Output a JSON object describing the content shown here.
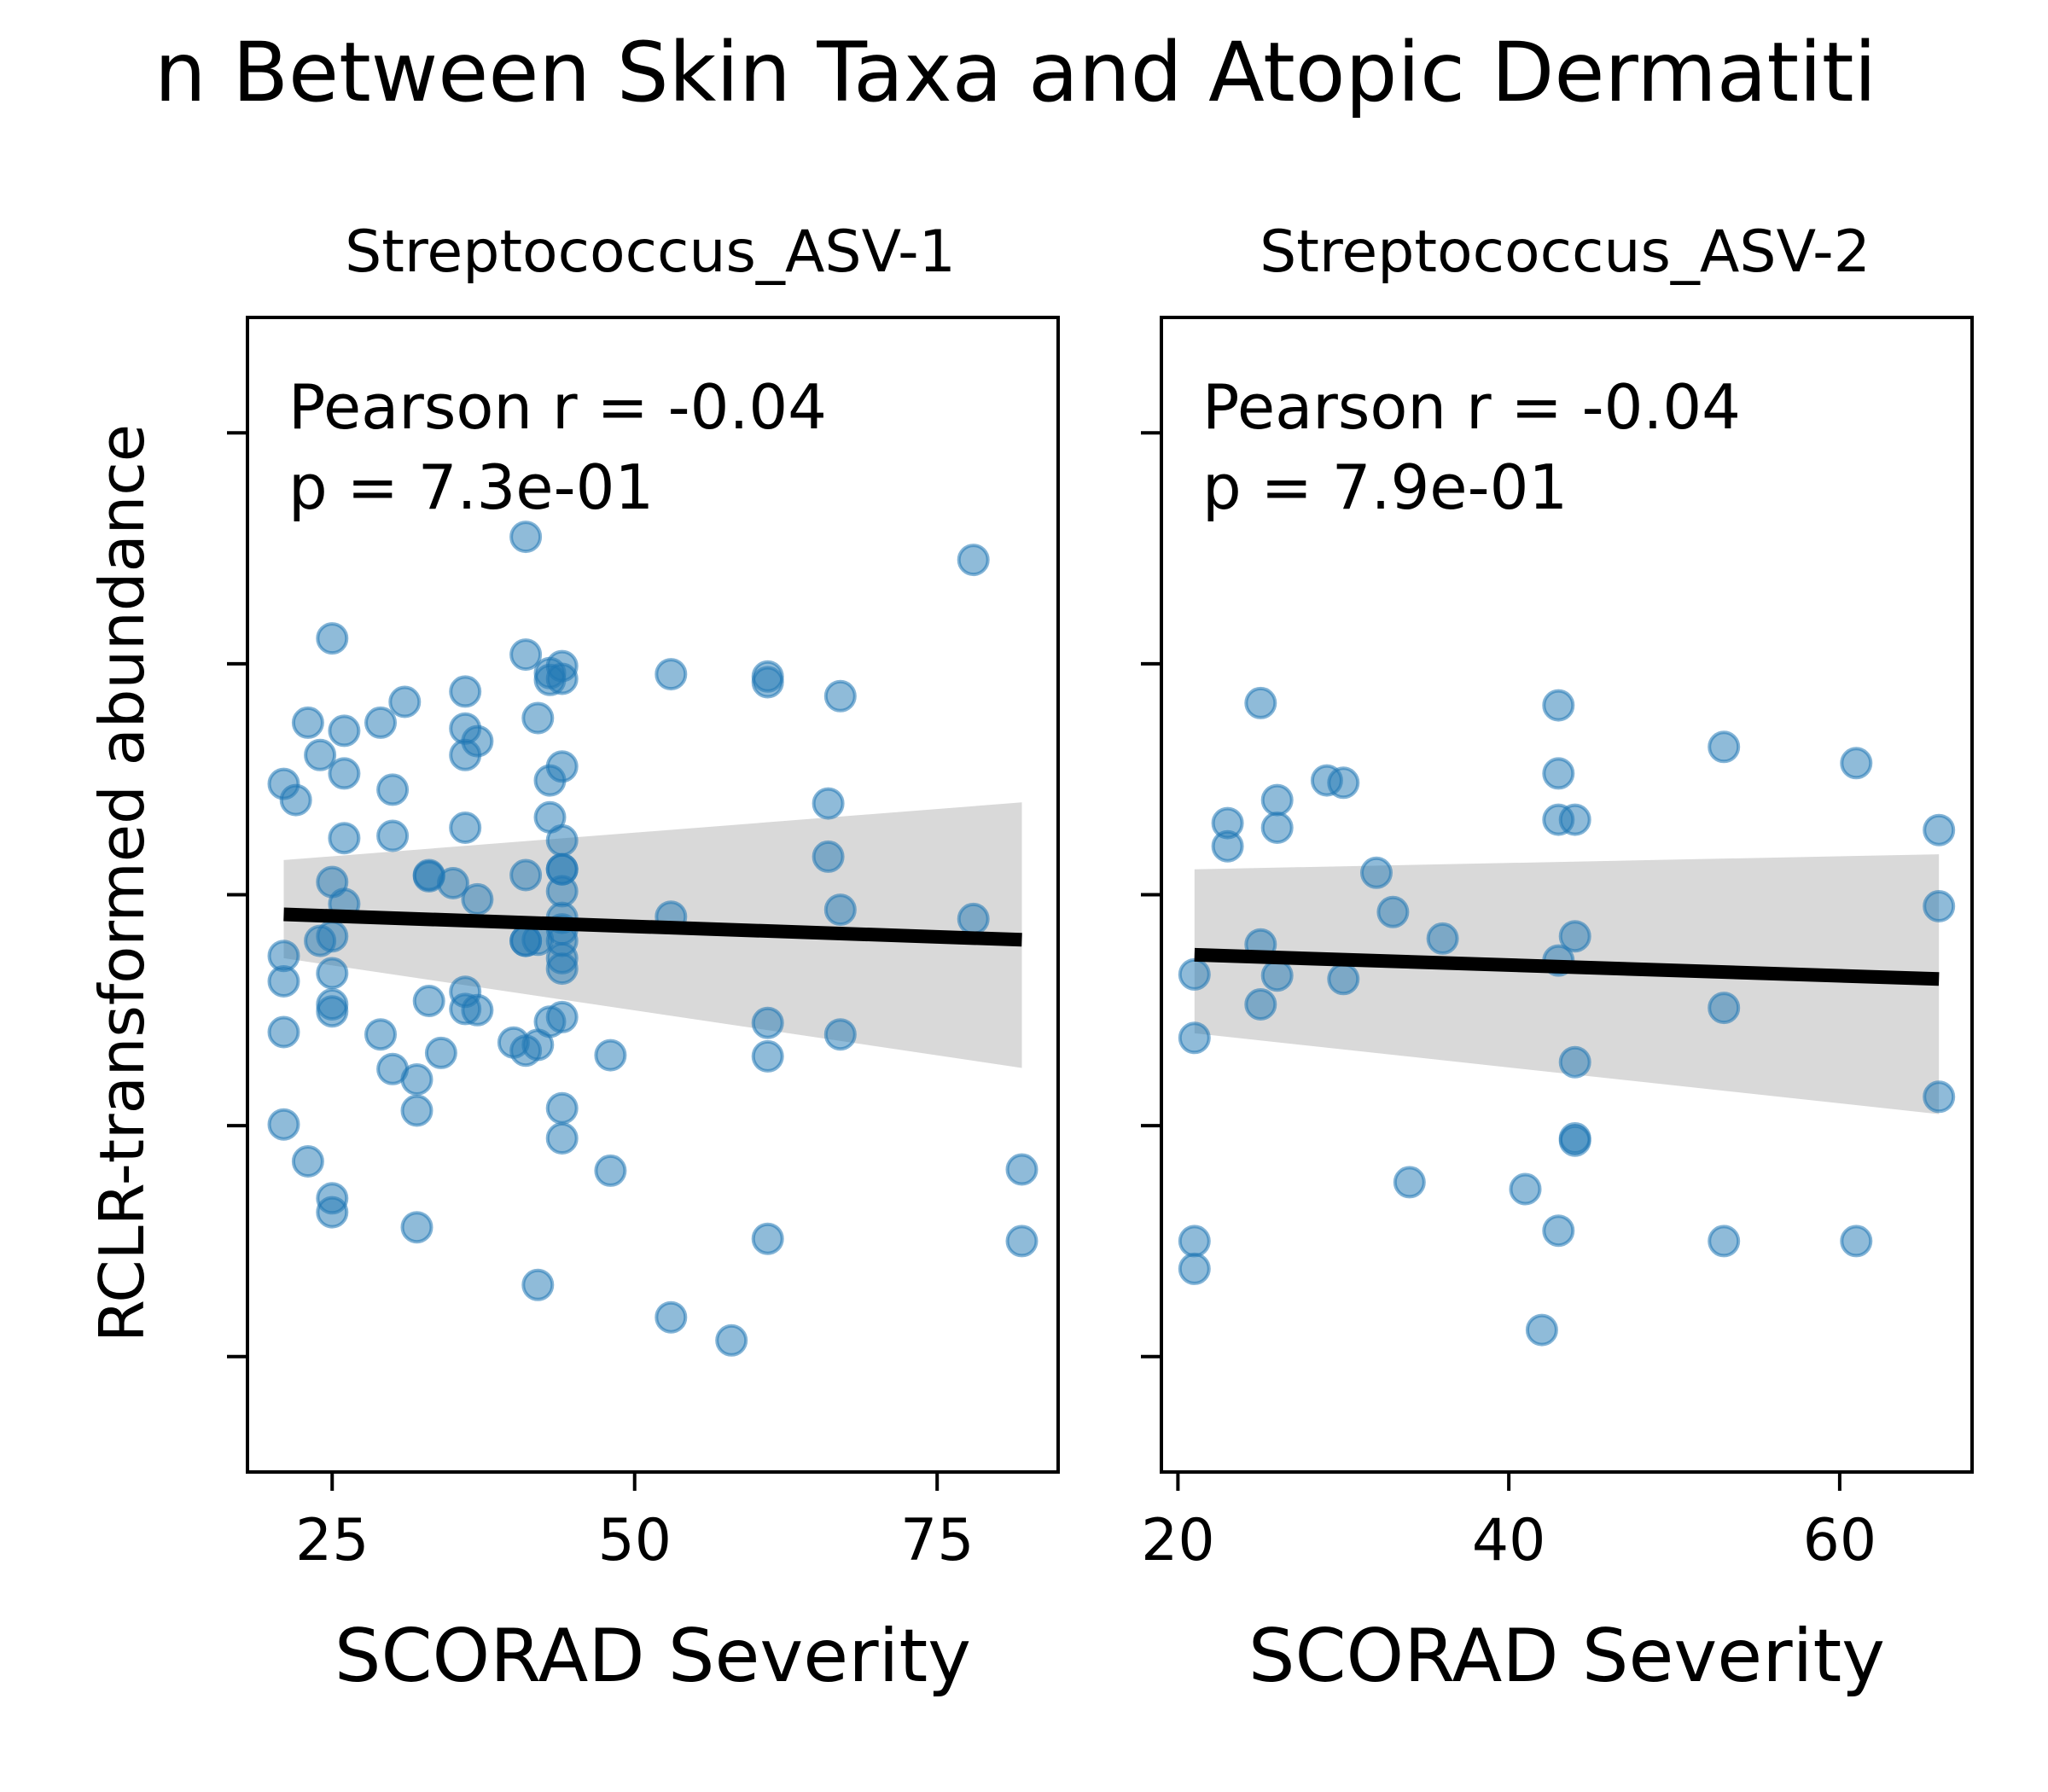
{
  "figure": {
    "title": "n Between Skin Taxa and Atopic Dermatiti",
    "ylabel": "RCLR-transformed abundance"
  },
  "chart_data": [
    {
      "type": "scatter",
      "title": "Streptococcus_ASV-1",
      "xlabel": "SCORAD Severity",
      "ylabel": "RCLR-transformed abundance",
      "xlim": [
        18,
        85
      ],
      "ylim": [
        -5.0,
        5.0
      ],
      "xticks": [
        25,
        50,
        75
      ],
      "yticks": [
        -4,
        -2,
        0,
        2,
        4
      ],
      "show_ytick_labels": false,
      "annotation": [
        "Pearson r = -0.04",
        "p = 7.3e-01"
      ],
      "point_color": "#1f77b4",
      "regression": {
        "x0": 21,
        "y0": -0.17,
        "x1": 82,
        "y1": -0.39
      },
      "ci_band": {
        "x": [
          21,
          82
        ],
        "upper": [
          0.3,
          0.8
        ],
        "lower": [
          -0.55,
          -1.5
        ]
      },
      "series": [
        {
          "x": [
            21,
            22,
            25,
            23,
            24,
            26,
            26,
            29,
            31,
            36,
            36,
            37,
            36,
            30,
            26,
            30,
            36,
            25,
            26,
            25,
            33,
            33,
            35,
            37,
            24,
            21,
            21,
            25,
            25,
            25,
            21,
            29,
            34,
            36,
            36,
            37,
            33,
            30,
            32,
            32,
            21,
            23,
            25,
            25,
            32,
            41,
            41,
            41,
            41,
            42,
            43,
            43,
            43,
            43,
            44,
            44,
            44,
            44,
            44,
            44,
            44,
            44,
            44,
            44,
            42,
            42,
            43,
            44,
            40,
            41,
            44,
            44,
            48,
            48,
            44,
            44,
            42,
            41,
            53,
            53,
            61,
            61,
            66,
            67,
            66,
            67,
            53,
            61,
            61,
            67,
            61,
            58,
            78,
            78,
            82,
            82
          ],
          "y": [
            0.96,
            0.82,
            2.22,
            1.49,
            1.21,
            1.42,
            1.05,
            1.49,
            1.67,
            1.76,
            1.44,
            1.33,
            1.21,
            0.91,
            0.49,
            0.51,
            0.58,
            0.11,
            -0.08,
            -0.36,
            0.16,
            0.17,
            0.1,
            -0.04,
            -0.4,
            -0.53,
            -0.75,
            -0.68,
            -0.95,
            -1.01,
            -1.19,
            -1.21,
            -1.37,
            -0.84,
            -0.99,
            -1.0,
            -0.92,
            -1.51,
            -1.6,
            -1.87,
            -1.99,
            -2.31,
            -2.63,
            -2.75,
            -2.88,
            3.1,
            2.08,
            0.17,
            -0.4,
            -0.39,
            0.99,
            0.67,
            1.92,
            1.86,
            1.98,
            1.87,
            1.11,
            0.47,
            0.22,
            0.22,
            -0.2,
            -0.3,
            -0.4,
            -0.64,
            1.53,
            -1.3,
            -1.1,
            -1.06,
            -1.28,
            -1.35,
            -1.85,
            -2.11,
            -1.39,
            -2.39,
            0.03,
            -0.55,
            -3.38,
            -0.4,
            1.91,
            -0.19,
            1.89,
            1.84,
            0.79,
            1.72,
            0.33,
            -0.13,
            -3.66,
            -1.11,
            -1.4,
            -1.21,
            -2.98,
            -3.86,
            2.9,
            -0.21,
            -2.38,
            -3.0
          ]
        }
      ]
    },
    {
      "type": "scatter",
      "title": "Streptococcus_ASV-2",
      "xlabel": "SCORAD Severity",
      "ylabel": "",
      "xlim": [
        19,
        68
      ],
      "ylim": [
        -5.0,
        5.0
      ],
      "xticks": [
        20,
        40,
        60
      ],
      "yticks": [
        -4,
        -2,
        0,
        2,
        4
      ],
      "show_ytick_labels": false,
      "annotation": [
        "Pearson r = -0.04",
        "p = 7.9e-01"
      ],
      "point_color": "#1f77b4",
      "regression": {
        "x0": 21,
        "y0": -0.52,
        "x1": 66,
        "y1": -0.73
      },
      "ci_band": {
        "x": [
          21,
          66
        ],
        "upper": [
          0.22,
          0.35
        ],
        "lower": [
          -1.2,
          -1.9
        ]
      },
      "series": [
        {
          "x": [
            25,
            43,
            53,
            61,
            29,
            30,
            43,
            26,
            23,
            23,
            26,
            43,
            44,
            66,
            32,
            33,
            66,
            36,
            25,
            44,
            43,
            21,
            26,
            30,
            25,
            44,
            53,
            21,
            44,
            66,
            44,
            34,
            41,
            43,
            53,
            61,
            21,
            21,
            42
          ],
          "y": [
            1.66,
            1.64,
            1.28,
            1.14,
            0.99,
            0.97,
            1.05,
            0.82,
            0.62,
            0.42,
            0.58,
            0.65,
            0.65,
            0.56,
            0.19,
            -0.15,
            -0.1,
            -0.38,
            -0.43,
            -0.36,
            -0.57,
            -0.69,
            -0.7,
            -0.73,
            -0.95,
            -1.45,
            -0.98,
            -1.24,
            -2.11,
            -1.75,
            -2.13,
            -2.49,
            -2.55,
            -2.91,
            -3.0,
            -3.0,
            -3.0,
            -3.24,
            -3.77
          ]
        }
      ]
    }
  ]
}
